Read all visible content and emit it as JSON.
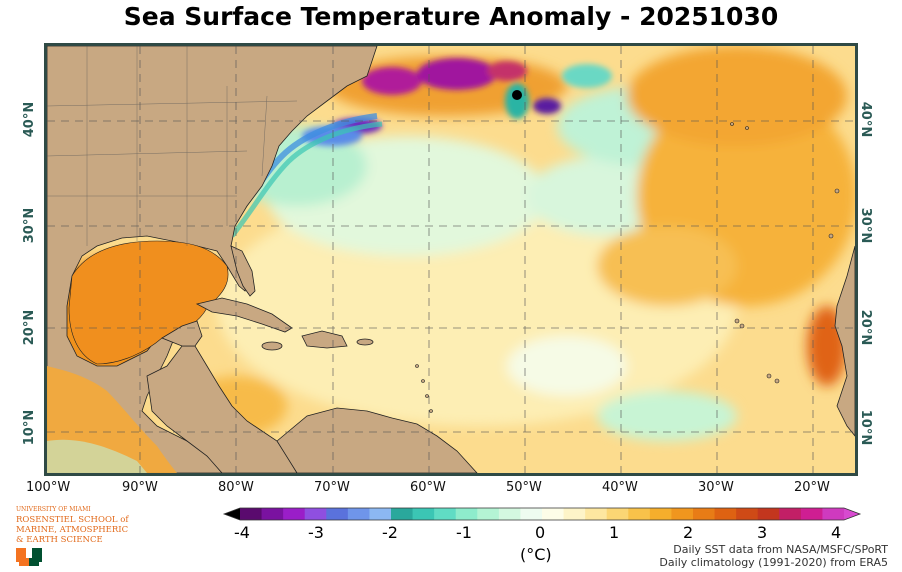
{
  "title": "Sea Surface Temperature Anomaly - 20251030",
  "longitude_labels": [
    "100°W",
    "90°W",
    "80°W",
    "70°W",
    "60°W",
    "50°W",
    "40°W",
    "30°W",
    "20°W"
  ],
  "latitude_labels": [
    "10°N",
    "20°N",
    "30°N",
    "40°N"
  ],
  "colorbar": {
    "ticks": [
      "-4",
      "-3",
      "-2",
      "-1",
      "0",
      "1",
      "2",
      "3",
      "4"
    ],
    "unit": "(°C)",
    "min": -4,
    "max": 4,
    "colors": [
      "#5a0a6e",
      "#7a12a0",
      "#9a1ec8",
      "#8f4fe0",
      "#5a72dc",
      "#6f95ea",
      "#8cb8f2",
      "#2aa89c",
      "#3bc6b4",
      "#60dcc4",
      "#8eeccc",
      "#b4f4d4",
      "#d4f8e0",
      "#eefcf0",
      "#fdfde8",
      "#fdf4c8",
      "#fde7a0",
      "#fbd674",
      "#f8c24a",
      "#f5ae2c",
      "#f0961e",
      "#e87c16",
      "#de6212",
      "#cf4a16",
      "#c3361e",
      "#c21f66",
      "#cf1e92",
      "#cf3abf"
    ]
  },
  "credits": {
    "line1": "Daily SST data from NASA/MSFC/SPoRT",
    "line2": "Daily climatology (1991-2020) from ERA5"
  },
  "logo": {
    "line1": "UNIVERSITY OF MIAMI",
    "line2": "ROSENSTIEL SCHOOL of",
    "line3": "MARINE, ATMOSPHERIC",
    "line4": "& EARTH SCIENCE"
  },
  "colors": {
    "land": "#c8a882",
    "ocean_base": "#fbd98a",
    "frame": "#2f4a45"
  }
}
